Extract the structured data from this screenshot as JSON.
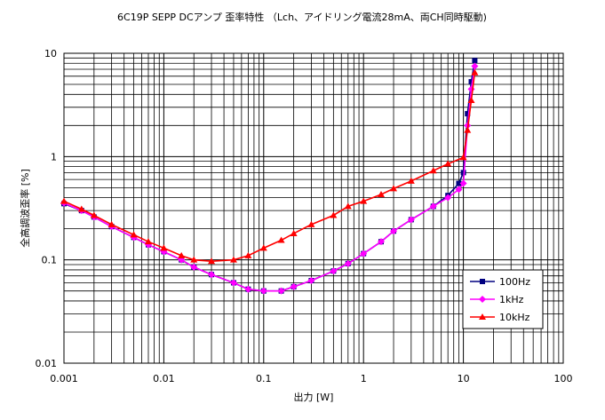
{
  "chart_data": {
    "type": "line",
    "title": "6C19P SEPP DCアンプ 歪率特性 （Lch、アイドリング電流28mA、両CH同時駆動)",
    "xlabel": "出力 [W]",
    "ylabel": "全高調波歪率 [%]",
    "x_scale": "log",
    "y_scale": "log",
    "xlim": [
      0.001,
      100
    ],
    "ylim": [
      0.01,
      10
    ],
    "x_ticks": [
      "0.001",
      "0.01",
      "0.1",
      "1",
      "10",
      "100"
    ],
    "y_ticks": [
      "0.01",
      "0.1",
      "1",
      "10"
    ],
    "grid": true,
    "legend_position": "bottom-right",
    "series": [
      {
        "name": "100Hz",
        "color": "#000080",
        "marker": "square",
        "points": [
          [
            0.001,
            0.35
          ],
          [
            0.0015,
            0.3
          ],
          [
            0.002,
            0.26
          ],
          [
            0.003,
            0.21
          ],
          [
            0.005,
            0.165
          ],
          [
            0.007,
            0.14
          ],
          [
            0.01,
            0.12
          ],
          [
            0.015,
            0.1
          ],
          [
            0.02,
            0.085
          ],
          [
            0.03,
            0.072
          ],
          [
            0.05,
            0.06
          ],
          [
            0.07,
            0.052
          ],
          [
            0.1,
            0.05
          ],
          [
            0.15,
            0.05
          ],
          [
            0.2,
            0.055
          ],
          [
            0.3,
            0.063
          ],
          [
            0.5,
            0.078
          ],
          [
            0.7,
            0.092
          ],
          [
            1,
            0.115
          ],
          [
            1.5,
            0.15
          ],
          [
            2,
            0.19
          ],
          [
            3,
            0.245
          ],
          [
            5,
            0.33
          ],
          [
            7,
            0.42
          ],
          [
            9,
            0.55
          ],
          [
            10,
            0.7
          ],
          [
            11,
            2.6
          ],
          [
            12,
            5.3
          ],
          [
            13,
            8.5
          ]
        ]
      },
      {
        "name": "1kHz",
        "color": "#ff00ff",
        "marker": "diamond",
        "points": [
          [
            0.001,
            0.355
          ],
          [
            0.0015,
            0.3
          ],
          [
            0.002,
            0.26
          ],
          [
            0.003,
            0.21
          ],
          [
            0.005,
            0.165
          ],
          [
            0.007,
            0.14
          ],
          [
            0.01,
            0.12
          ],
          [
            0.015,
            0.1
          ],
          [
            0.02,
            0.085
          ],
          [
            0.03,
            0.072
          ],
          [
            0.05,
            0.06
          ],
          [
            0.07,
            0.052
          ],
          [
            0.1,
            0.05
          ],
          [
            0.15,
            0.05
          ],
          [
            0.2,
            0.055
          ],
          [
            0.3,
            0.063
          ],
          [
            0.5,
            0.078
          ],
          [
            0.7,
            0.092
          ],
          [
            1,
            0.115
          ],
          [
            1.5,
            0.15
          ],
          [
            2,
            0.19
          ],
          [
            3,
            0.245
          ],
          [
            5,
            0.33
          ],
          [
            7,
            0.4
          ],
          [
            9,
            0.48
          ],
          [
            10,
            0.55
          ],
          [
            11,
            2.0
          ],
          [
            12,
            4.5
          ],
          [
            13,
            7.5
          ]
        ]
      },
      {
        "name": "10kHz",
        "color": "#ff0000",
        "marker": "triangle",
        "points": [
          [
            0.001,
            0.37
          ],
          [
            0.0015,
            0.31
          ],
          [
            0.002,
            0.27
          ],
          [
            0.003,
            0.22
          ],
          [
            0.005,
            0.175
          ],
          [
            0.007,
            0.15
          ],
          [
            0.01,
            0.13
          ],
          [
            0.015,
            0.11
          ],
          [
            0.02,
            0.1
          ],
          [
            0.03,
            0.097
          ],
          [
            0.05,
            0.1
          ],
          [
            0.07,
            0.11
          ],
          [
            0.1,
            0.13
          ],
          [
            0.15,
            0.155
          ],
          [
            0.2,
            0.18
          ],
          [
            0.3,
            0.22
          ],
          [
            0.5,
            0.27
          ],
          [
            0.7,
            0.33
          ],
          [
            1,
            0.37
          ],
          [
            1.5,
            0.43
          ],
          [
            2,
            0.49
          ],
          [
            3,
            0.58
          ],
          [
            5,
            0.73
          ],
          [
            7,
            0.85
          ],
          [
            10,
            0.98
          ],
          [
            11,
            1.8
          ],
          [
            12,
            3.5
          ],
          [
            13,
            6.5
          ]
        ]
      }
    ]
  }
}
